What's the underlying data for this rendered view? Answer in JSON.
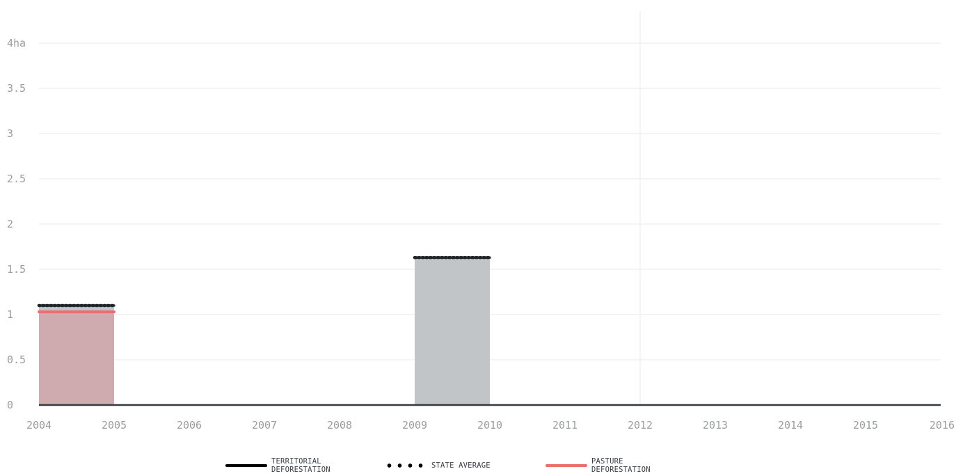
{
  "chart_data": {
    "type": "bar",
    "title": "",
    "xlabel": "",
    "ylabel": "",
    "x_ticks": [
      "2004",
      "2005",
      "2006",
      "2007",
      "2008",
      "2009",
      "2010",
      "2011",
      "2012",
      "2013",
      "2014",
      "2015",
      "2016"
    ],
    "y_ticks": [
      "0",
      "0.5",
      "1",
      "1.5",
      "2",
      "2.5",
      "3",
      "3.5",
      "4ha"
    ],
    "y_tick_values": [
      0,
      0.5,
      1,
      1.5,
      2,
      2.5,
      3,
      3.5,
      4
    ],
    "xlim": [
      2004,
      2016
    ],
    "ylim": [
      0,
      4
    ],
    "grid": true,
    "legend_position": "bottom",
    "series": [
      {
        "name": "TERRITORIAL DEFORESTATION",
        "style": "solid",
        "color": "#333b40",
        "x": [
          2004,
          2005,
          2006,
          2007,
          2008,
          2009,
          2010,
          2011,
          2012,
          2013,
          2014,
          2015
        ],
        "values": [
          1.1,
          0,
          0,
          0,
          0,
          1.63,
          0,
          0,
          0,
          0,
          0,
          0
        ]
      },
      {
        "name": "STATE AVERAGE",
        "style": "dotted",
        "color": "#333b40",
        "x": [
          2004,
          2005,
          2006,
          2007,
          2008,
          2009,
          2010,
          2011,
          2012,
          2013,
          2014,
          2015
        ],
        "values": [
          1.1,
          0,
          0,
          0,
          0,
          1.63,
          0,
          0,
          0,
          0,
          0,
          0
        ]
      },
      {
        "name": "PASTURE DEFORESTATION",
        "style": "solid",
        "color": "#e8706f",
        "x": [
          2004,
          2005,
          2006,
          2007,
          2008,
          2009,
          2010,
          2011,
          2012,
          2013,
          2014,
          2015
        ],
        "values": [
          1.03,
          0,
          0,
          0,
          0,
          0,
          0,
          0,
          0,
          0,
          0,
          0
        ]
      }
    ],
    "colors": {
      "territorial_fill": "#c1c5c8",
      "pasture_fill": "#cfaaae",
      "line": "#333b40",
      "pasture_line": "#e8706f",
      "grid": "#e8eaeb",
      "tick_text": "#9a9d9f"
    },
    "highlight_year": 2012
  },
  "legend": {
    "territorial_line1": "TERRITORIAL",
    "territorial_line2": "DEFORESTATION",
    "state_average": "STATE AVERAGE",
    "pasture_line1": "PASTURE",
    "pasture_line2": "DEFORESTATION"
  }
}
